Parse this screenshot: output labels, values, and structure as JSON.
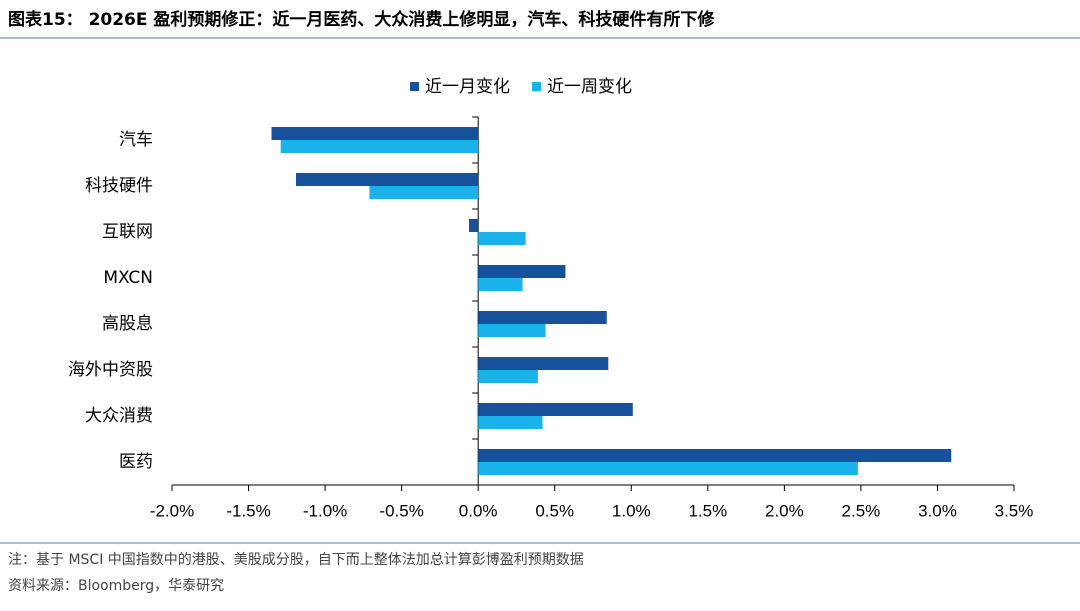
{
  "chart_data": {
    "type": "hbar",
    "title": "图表15： 2026E 盈利预期修正：近一月医药、大众消费上修明显，汽车、科技硬件有所下修",
    "note": "注：基于 MSCI 中国指数中的港股、美股成分股，自下而上整体法加总计算彭博盈利预期数据",
    "source": "资料来源：Bloomberg，华泰研究",
    "categories": [
      "汽车",
      "科技硬件",
      "互联网",
      "MXCN",
      "高股息",
      "海外中资股",
      "大众消费",
      "医药"
    ],
    "series": [
      {
        "name": "近一月变化",
        "color": "#17519c",
        "values": [
          -1.35,
          -1.19,
          -0.06,
          0.57,
          0.84,
          0.85,
          1.01,
          3.09
        ]
      },
      {
        "name": "近一周变化",
        "color": "#1ab2ea",
        "values": [
          -1.29,
          -0.71,
          0.31,
          0.29,
          0.44,
          0.39,
          0.42,
          2.48
        ]
      }
    ],
    "xlim": [
      -2,
      3.5
    ],
    "xticks": [
      {
        "value": -2,
        "label": "-2.0%"
      },
      {
        "value": -1.5,
        "label": "-1.5%"
      },
      {
        "value": -1,
        "label": "-1.0%"
      },
      {
        "value": -0.5,
        "label": "-0.5%"
      },
      {
        "value": 0,
        "label": "0.0%"
      },
      {
        "value": 0.5,
        "label": "0.5%"
      },
      {
        "value": 1,
        "label": "1.0%"
      },
      {
        "value": 1.5,
        "label": "1.5%"
      },
      {
        "value": 2,
        "label": "2.0%"
      },
      {
        "value": 2.5,
        "label": "2.5%"
      },
      {
        "value": 3,
        "label": "3.0%"
      },
      {
        "value": 3.5,
        "label": "3.5%"
      }
    ],
    "legend": "top"
  }
}
